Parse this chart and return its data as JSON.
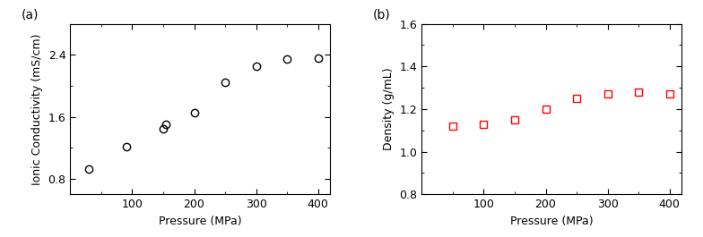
{
  "a_x": [
    30,
    90,
    150,
    155,
    200,
    250,
    300,
    350,
    400
  ],
  "a_y": [
    0.93,
    1.22,
    1.45,
    1.5,
    1.65,
    2.05,
    2.25,
    2.35,
    2.36
  ],
  "a_xlabel": "Pressure (MPa)",
  "a_ylabel": "Ionic Conductivity (mS/cm)",
  "a_xlim": [
    0,
    420
  ],
  "a_ylim": [
    0.6,
    2.8
  ],
  "a_yticks": [
    0.8,
    1.6,
    2.4
  ],
  "a_xticks": [
    100,
    200,
    300,
    400
  ],
  "a_label": "(a)",
  "b_x": [
    50,
    100,
    150,
    200,
    250,
    300,
    350,
    400
  ],
  "b_y": [
    1.12,
    1.13,
    1.15,
    1.2,
    1.25,
    1.27,
    1.28,
    1.27
  ],
  "b_xlabel": "Pressure (MPa)",
  "b_ylabel": "Density (g/mL)",
  "b_xlim": [
    0,
    420
  ],
  "b_ylim": [
    0.8,
    1.6
  ],
  "b_yticks": [
    0.8,
    1.0,
    1.2,
    1.4,
    1.6
  ],
  "b_xticks": [
    100,
    200,
    300,
    400
  ],
  "b_label": "(b)",
  "marker_a_color": "black",
  "marker_b_color": "red",
  "marker_size": 6,
  "linewidth": 1.0,
  "font_size": 9,
  "label_font_size": 9,
  "panel_label_fontsize": 10
}
